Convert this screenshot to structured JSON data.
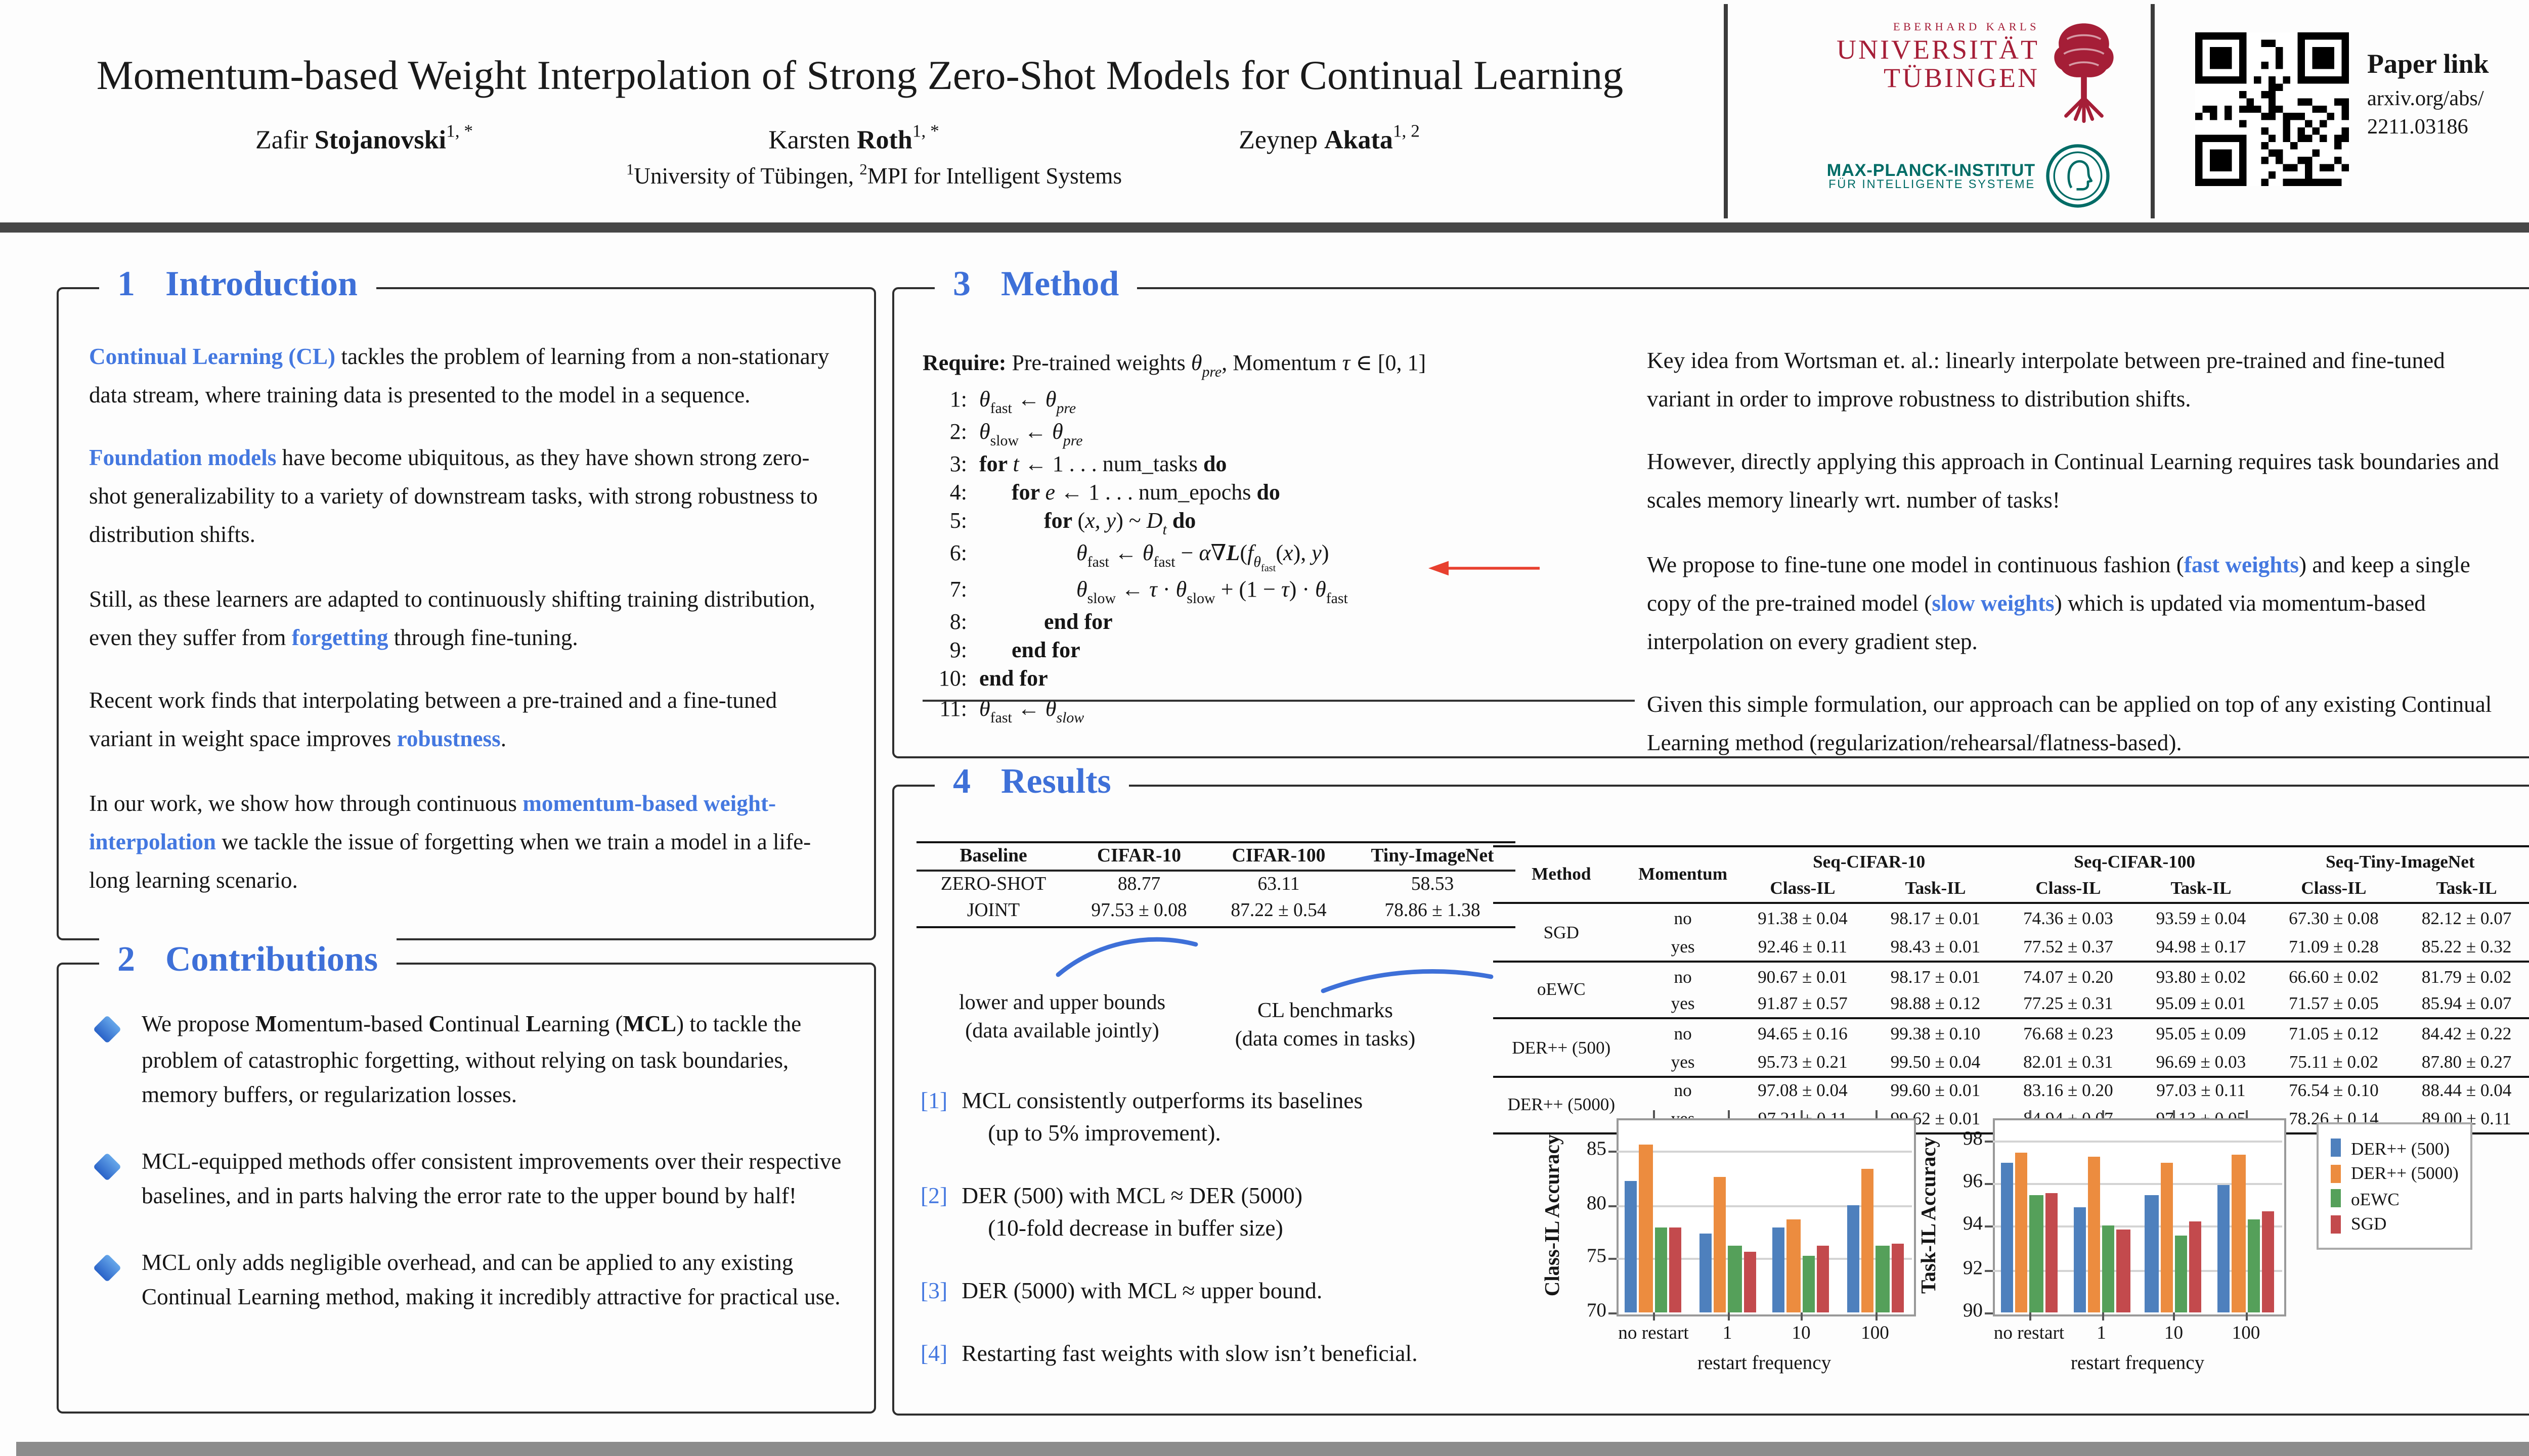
{
  "colors": {
    "accent_blue": "#3e70d8",
    "inline_blue": "#4478e0",
    "uni_crimson": "#A51E37",
    "mpi_teal": "#006C66",
    "arrow_red": "#e8402f",
    "bar_blue": "#4e80bd",
    "bar_orange": "#ec8c3f",
    "bar_green": "#55a05a",
    "bar_red": "#c34a4d"
  },
  "header": {
    "title": "Momentum-based Weight Interpolation of Strong Zero-Shot Models for Continual Learning",
    "authors": [
      [
        {
          "t": "Zafir "
        },
        {
          "t": "Stojanovski",
          "b": 1
        },
        {
          "t": "1, *",
          "p": 1
        }
      ],
      [
        {
          "t": "Karsten "
        },
        {
          "t": "Roth",
          "b": 1
        },
        {
          "t": "1, *",
          "p": 1
        }
      ],
      [
        {
          "t": "Zeynep "
        },
        {
          "t": "Akata",
          "b": 1
        },
        {
          "t": "1, 2",
          "p": 1
        }
      ]
    ],
    "affiliation": [
      {
        "t": "1",
        "p": 1
      },
      {
        "t": "University of Tübingen, "
      },
      {
        "t": "2",
        "p": 1
      },
      {
        "t": "MPI for Intelligent Systems"
      }
    ],
    "tuebingen_logo": {
      "line1": "EBERHARD KARLS",
      "line2": "UNIVERSITÄT",
      "line3": "TÜBINGEN"
    },
    "mpi_logo": {
      "line1": "MAX-PLANCK-INSTITUT",
      "line2": "FÜR INTELLIGENTE SYSTEME"
    },
    "paper_link": {
      "label": "Paper link",
      "url_line1": "arxiv.org/abs/",
      "url_line2": "2211.03186"
    }
  },
  "sections": {
    "introduction": {
      "number": "1",
      "title": "Introduction",
      "paragraphs": [
        [
          {
            "t": "Continual Learning (CL)",
            "c": 1
          },
          {
            "t": " tackles the problem of learning from a non-stationary data stream, where training data is presented to the model in a sequence."
          }
        ],
        [
          {
            "t": "Foundation models",
            "c": 1
          },
          {
            "t": " have become ubiquitous, as they have shown strong zero-shot generalizability to a variety of downstream tasks, with strong robustness to distribution shifts."
          }
        ],
        [
          {
            "t": "Still, as these learners are adapted to continuously shifting training distribution, even they suffer from "
          },
          {
            "t": "forgetting",
            "c": 1
          },
          {
            "t": " through fine-tuning."
          }
        ],
        [
          {
            "t": "Recent work finds that interpolating between a pre-trained and a fine-tuned variant in weight space improves "
          },
          {
            "t": "robustness",
            "c": 1
          },
          {
            "t": "."
          }
        ],
        [
          {
            "t": "In our work, we show how through continuous "
          },
          {
            "t": "momentum-based weight-interpolation",
            "c": 1
          },
          {
            "t": " we tackle the issue of forgetting when we train a model in a life-long learning scenario."
          }
        ]
      ]
    },
    "contributions": {
      "number": "2",
      "title": "Contributions",
      "items": [
        [
          {
            "t": "We propose "
          },
          {
            "t": "M",
            "b": 1
          },
          {
            "t": "omentum-based "
          },
          {
            "t": "C",
            "b": 1
          },
          {
            "t": "ontinual "
          },
          {
            "t": "L",
            "b": 1
          },
          {
            "t": "earning ("
          },
          {
            "t": "MCL",
            "b": 1
          },
          {
            "t": ") to tackle the problem of catastrophic forgetting, without relying on task boundaries, memory buffers, or regularization losses."
          }
        ],
        [
          {
            "t": "MCL-equipped methods offer consistent improvements over their respective baselines, and in parts halving the error rate to the upper bound by half!"
          }
        ],
        [
          {
            "t": "MCL only adds negligible overhead, and can be applied to any existing Continual Learning  method, making it incredibly attractive for practical use."
          }
        ]
      ]
    },
    "method": {
      "number": "3",
      "title": "Method",
      "algorithm": {
        "require": [
          {
            "t": "Require:",
            "b": 1
          },
          {
            "t": "  Pre-trained weights "
          },
          {
            "t": "θ",
            "i": 1
          },
          {
            "t": "pre",
            "s": 1,
            "i": 1
          },
          {
            "t": ", Momentum "
          },
          {
            "t": "τ",
            "i": 1
          },
          {
            "t": " ∈ [0, 1]"
          }
        ],
        "lines": [
          {
            "num": "1:",
            "indent": 0,
            "segs": [
              {
                "t": "θ",
                "i": 1
              },
              {
                "t": "fast",
                "s": 1
              },
              {
                "t": " ← "
              },
              {
                "t": "θ",
                "i": 1
              },
              {
                "t": "pre",
                "s": 1,
                "i": 1
              }
            ]
          },
          {
            "num": "2:",
            "indent": 0,
            "segs": [
              {
                "t": "θ",
                "i": 1
              },
              {
                "t": "slow",
                "s": 1
              },
              {
                "t": " ← "
              },
              {
                "t": "θ",
                "i": 1
              },
              {
                "t": "pre",
                "s": 1,
                "i": 1
              }
            ]
          },
          {
            "num": "3:",
            "indent": 0,
            "segs": [
              {
                "t": "for ",
                "b": 1
              },
              {
                "t": "t",
                "i": 1
              },
              {
                "t": " ← 1 . . . num_tasks "
              },
              {
                "t": "do",
                "b": 1
              }
            ]
          },
          {
            "num": "4:",
            "indent": 1,
            "segs": [
              {
                "t": "for ",
                "b": 1
              },
              {
                "t": "e",
                "i": 1
              },
              {
                "t": " ← 1 . . . num_epochs "
              },
              {
                "t": "do",
                "b": 1
              }
            ]
          },
          {
            "num": "5:",
            "indent": 2,
            "segs": [
              {
                "t": "for ",
                "b": 1
              },
              {
                "t": "("
              },
              {
                "t": "x, y",
                "i": 1
              },
              {
                "t": ") ~ "
              },
              {
                "t": "D",
                "i": 1
              },
              {
                "t": "t",
                "s": 1,
                "i": 1
              },
              {
                "t": " "
              },
              {
                "t": "do",
                "b": 1
              }
            ]
          },
          {
            "num": "6:",
            "indent": 3,
            "segs": [
              {
                "t": "θ",
                "i": 1
              },
              {
                "t": "fast",
                "s": 1
              },
              {
                "t": " ← "
              },
              {
                "t": "θ",
                "i": 1
              },
              {
                "t": "fast",
                "s": 1
              },
              {
                "t": " − "
              },
              {
                "t": "α",
                "i": 1
              },
              {
                "t": "∇"
              },
              {
                "t": "L",
                "b": 1,
                "i": 1
              },
              {
                "t": "("
              },
              {
                "t": "f",
                "i": 1
              },
              {
                "t": "θ",
                "s": 1,
                "i": 1
              },
              {
                "t": "fast",
                "s": 2
              },
              {
                "t": "("
              },
              {
                "t": "x",
                "i": 1
              },
              {
                "t": "), "
              },
              {
                "t": "y",
                "i": 1
              },
              {
                "t": ")"
              }
            ]
          },
          {
            "num": "7:",
            "indent": 3,
            "segs": [
              {
                "t": "θ",
                "i": 1
              },
              {
                "t": "slow",
                "s": 1
              },
              {
                "t": " ← "
              },
              {
                "t": "τ",
                "i": 1
              },
              {
                "t": " · "
              },
              {
                "t": "θ",
                "i": 1
              },
              {
                "t": "slow",
                "s": 1
              },
              {
                "t": " + (1 − "
              },
              {
                "t": "τ",
                "i": 1
              },
              {
                "t": ") · "
              },
              {
                "t": "θ",
                "i": 1
              },
              {
                "t": "fast",
                "s": 1
              }
            ]
          },
          {
            "num": "8:",
            "indent": 2,
            "segs": [
              {
                "t": "end for",
                "b": 1
              }
            ]
          },
          {
            "num": "9:",
            "indent": 1,
            "segs": [
              {
                "t": "end for",
                "b": 1
              }
            ]
          },
          {
            "num": "10:",
            "indent": 0,
            "segs": [
              {
                "t": "end for",
                "b": 1
              }
            ]
          },
          {
            "num": "11:",
            "indent": 0,
            "segs": [
              {
                "t": "θ",
                "i": 1
              },
              {
                "t": "fast",
                "s": 1
              },
              {
                "t": " ← "
              },
              {
                "t": "θ",
                "i": 1
              },
              {
                "t": "slow",
                "s": 1,
                "i": 1
              }
            ]
          }
        ]
      },
      "paragraphs": [
        [
          {
            "t": "Key idea from Wortsman et. al.: linearly interpolate between pre-trained and fine-tuned variant in order to improve robustness to distribution shifts."
          }
        ],
        [
          {
            "t": "However, directly applying this approach in Continual Learning requires task boundaries and scales memory linearly wrt. number of tasks!"
          }
        ],
        [
          {
            "t": "We propose to fine-tune one model in continuous fashion ("
          },
          {
            "t": "fast weights",
            "c": 1
          },
          {
            "t": ") and keep a single copy of the pre-trained model ("
          },
          {
            "t": "slow weights",
            "c": 1
          },
          {
            "t": ") which is updated via momentum-based interpolation on every gradient step."
          }
        ],
        [
          {
            "t": "Given this simple formulation, our approach can be applied on top of any existing Continual Learning method (regularization/rehearsal/flatness-based)."
          }
        ]
      ]
    },
    "results": {
      "number": "4",
      "title": "Results",
      "baseline_table": {
        "headers": [
          "Baseline",
          "CIFAR-10",
          "CIFAR-100",
          "Tiny-ImageNet"
        ],
        "rows": [
          [
            "ZERO-SHOT",
            "88.77",
            "63.11",
            "58.53"
          ],
          [
            "JOINT",
            "97.53 ± 0.08",
            "87.22 ± 0.54",
            "78.86 ± 1.38"
          ]
        ]
      },
      "annotations": [
        {
          "line1": "lower and upper bounds",
          "line2": "(data available jointly)"
        },
        {
          "line1": "CL benchmarks",
          "line2": "(data comes in tasks)"
        }
      ],
      "main_table": {
        "method_header": "Method",
        "momentum_header": "Momentum",
        "groups": [
          {
            "name": "Seq-CIFAR-10",
            "cols": [
              "Class-IL",
              "Task-IL"
            ]
          },
          {
            "name": "Seq-CIFAR-100",
            "cols": [
              "Class-IL",
              "Task-IL"
            ]
          },
          {
            "name": "Seq-Tiny-ImageNet",
            "cols": [
              "Class-IL",
              "Task-IL"
            ]
          }
        ],
        "rows": [
          {
            "method": "SGD",
            "momentum": [
              "no",
              "yes"
            ],
            "values": [
              [
                "91.38 ± 0.04",
                "98.17 ± 0.01",
                "74.36 ± 0.03",
                "93.59 ± 0.04",
                "67.30 ± 0.08",
                "82.12 ± 0.07"
              ],
              [
                "92.46 ± 0.11",
                "98.43 ± 0.01",
                "77.52 ± 0.37",
                "94.98 ± 0.17",
                "71.09 ± 0.28",
                "85.22 ± 0.32"
              ]
            ]
          },
          {
            "method": "oEWC",
            "momentum": [
              "no",
              "yes"
            ],
            "values": [
              [
                "90.67 ± 0.01",
                "98.17 ± 0.01",
                "74.07 ± 0.20",
                "93.80 ± 0.02",
                "66.60 ± 0.02",
                "81.79 ± 0.02"
              ],
              [
                "91.87 ± 0.57",
                "98.88 ± 0.12",
                "77.25 ± 0.31",
                "95.09 ± 0.01",
                "71.57 ± 0.05",
                "85.94 ± 0.07"
              ]
            ]
          },
          {
            "method": "DER++ (500)",
            "momentum": [
              "no",
              "yes"
            ],
            "values": [
              [
                "94.65 ± 0.16",
                "99.38 ± 0.10",
                "76.68 ± 0.23",
                "95.05 ± 0.09",
                "71.05 ± 0.12",
                "84.42 ± 0.22"
              ],
              [
                "95.73 ± 0.21",
                "99.50 ± 0.04",
                "82.01 ± 0.31",
                "96.69 ± 0.03",
                "75.11 ± 0.02",
                "87.80 ± 0.27"
              ]
            ]
          },
          {
            "method": "DER++ (5000)",
            "momentum": [
              "no",
              "yes"
            ],
            "values": [
              [
                "97.08 ± 0.04",
                "99.60 ± 0.01",
                "83.16 ± 0.20",
                "97.03 ± 0.11",
                "76.54 ± 0.10",
                "88.44 ± 0.04"
              ],
              [
                "97.21 ± 0.11",
                "99.62 ± 0.01",
                "84.94 ± 0.07",
                "97.13 ± 0.05",
                "78.26 ± 0.14",
                "89.00 ± 0.11"
              ]
            ]
          }
        ]
      },
      "findings": [
        {
          "label": "[1]",
          "lines": [
            "MCL consistently outperforms its baselines",
            "(up to 5% improvement)."
          ]
        },
        {
          "label": "[2]",
          "lines": [
            "DER (500) with MCL ≈ DER (5000)",
            "(10-fold decrease in buffer size)"
          ]
        },
        {
          "label": "[3]",
          "lines": [
            "DER (5000) with MCL ≈ upper bound."
          ]
        },
        {
          "label": "[4]",
          "lines": [
            "Restarting fast weights with slow isn’t beneficial."
          ]
        }
      ]
    }
  },
  "chart_data": [
    {
      "type": "bar",
      "title": "",
      "xlabel": "restart frequency",
      "ylabel": "Class-IL Accuracy",
      "categories": [
        "no restart",
        "1",
        "10",
        "100"
      ],
      "series": [
        {
          "name": "DER++ (500)",
          "color": "#4e80bd",
          "values": [
            82.1,
            77.3,
            77.9,
            79.9
          ]
        },
        {
          "name": "DER++ (5000)",
          "color": "#ec8c3f",
          "values": [
            85.5,
            82.5,
            78.7,
            83.4
          ]
        },
        {
          "name": "oEWC",
          "color": "#55a05a",
          "values": [
            77.8,
            76.2,
            75.3,
            76.2
          ]
        },
        {
          "name": "SGD",
          "color": "#c34a4d",
          "values": [
            77.8,
            75.7,
            76.1,
            76.3
          ]
        }
      ],
      "ylim": [
        70,
        88
      ],
      "yticks": [
        70,
        75,
        80,
        85
      ],
      "grid": true,
      "legend": false
    },
    {
      "type": "bar",
      "title": "",
      "xlabel": "restart frequency",
      "ylabel": "Task-IL Accuracy",
      "categories": [
        "no restart",
        "1",
        "10",
        "100"
      ],
      "series": [
        {
          "name": "DER++ (500)",
          "color": "#4e80bd",
          "values": [
            96.9,
            94.9,
            95.4,
            95.9
          ]
        },
        {
          "name": "DER++ (5000)",
          "color": "#ec8c3f",
          "values": [
            97.4,
            97.2,
            96.9,
            97.3
          ]
        },
        {
          "name": "oEWC",
          "color": "#55a05a",
          "values": [
            95.4,
            94.0,
            93.6,
            94.3
          ]
        },
        {
          "name": "SGD",
          "color": "#c34a4d",
          "values": [
            95.5,
            93.8,
            94.2,
            94.7
          ]
        }
      ],
      "ylim": [
        90,
        99
      ],
      "yticks": [
        90,
        92,
        94,
        96,
        98
      ],
      "grid": true,
      "legend": true,
      "legend_position": "right"
    }
  ]
}
